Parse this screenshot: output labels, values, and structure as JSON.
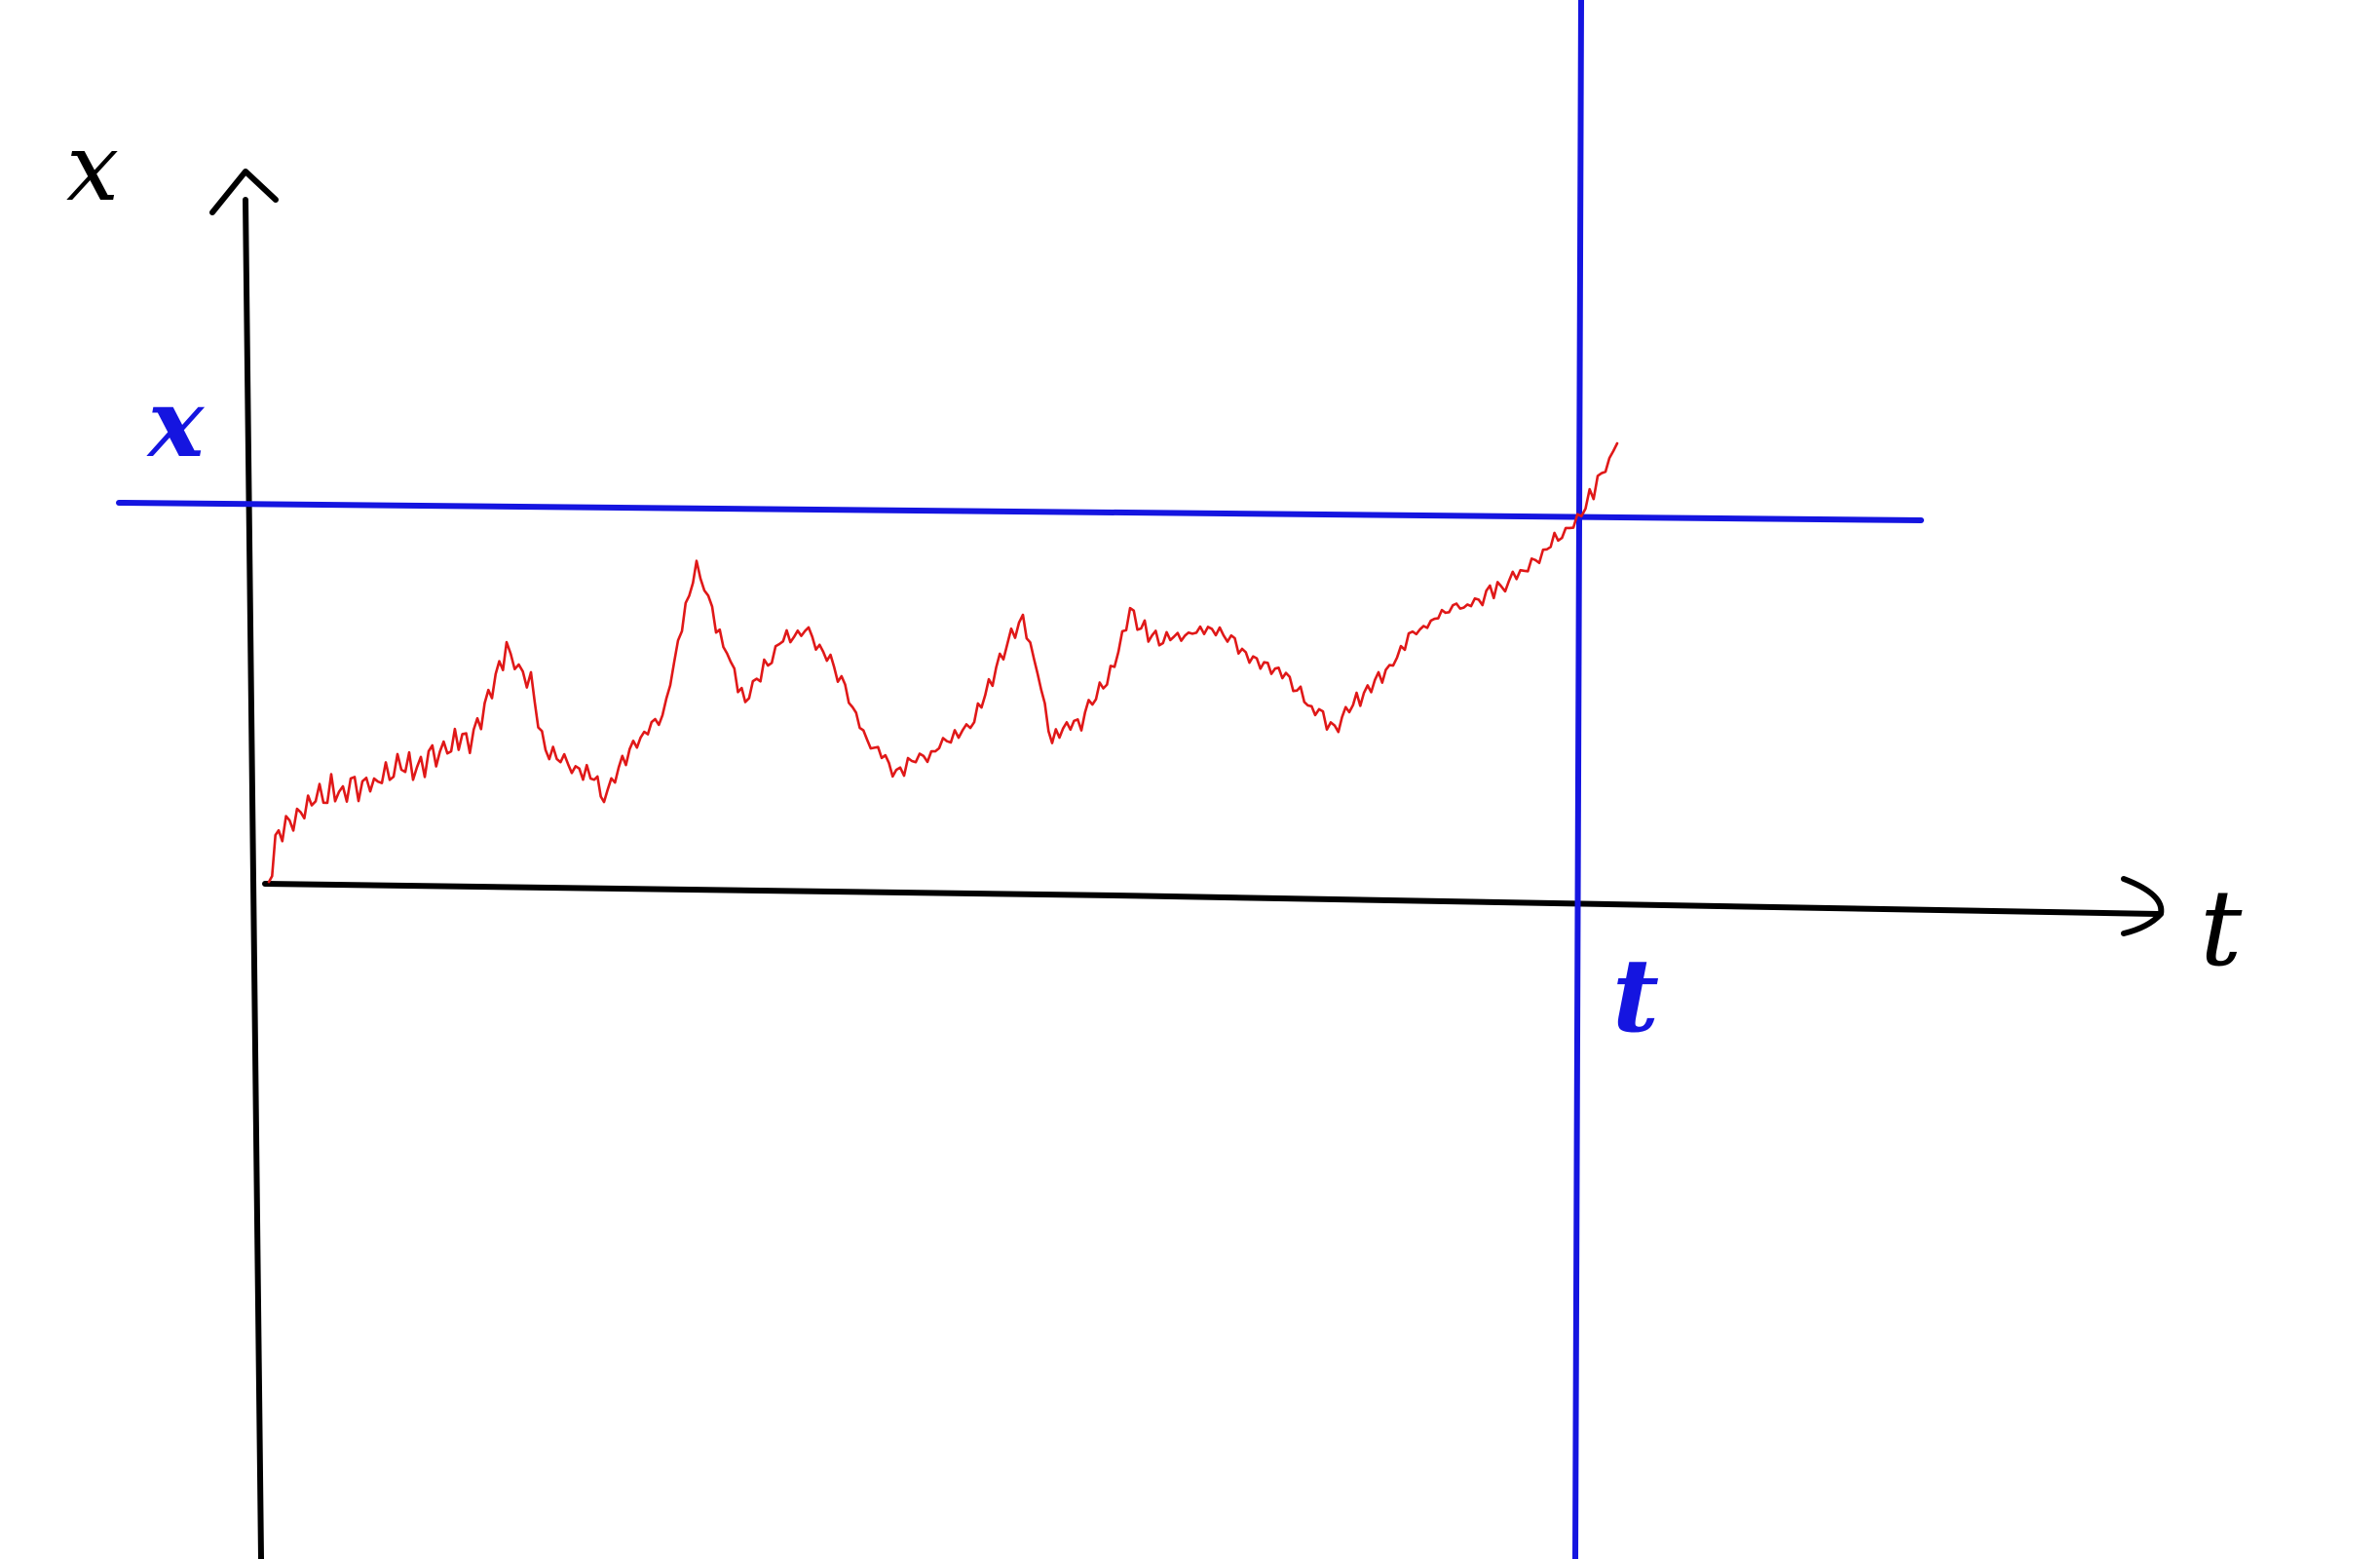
{
  "labels": {
    "y_axis": "x",
    "x_axis": "t",
    "level": "x",
    "time": "t"
  },
  "colors": {
    "axes": "#000000",
    "guides": "#1515e0",
    "path": "#e01818",
    "background": "#ffffff"
  },
  "axes": {
    "x_arrow": true,
    "y_arrow": true
  }
}
